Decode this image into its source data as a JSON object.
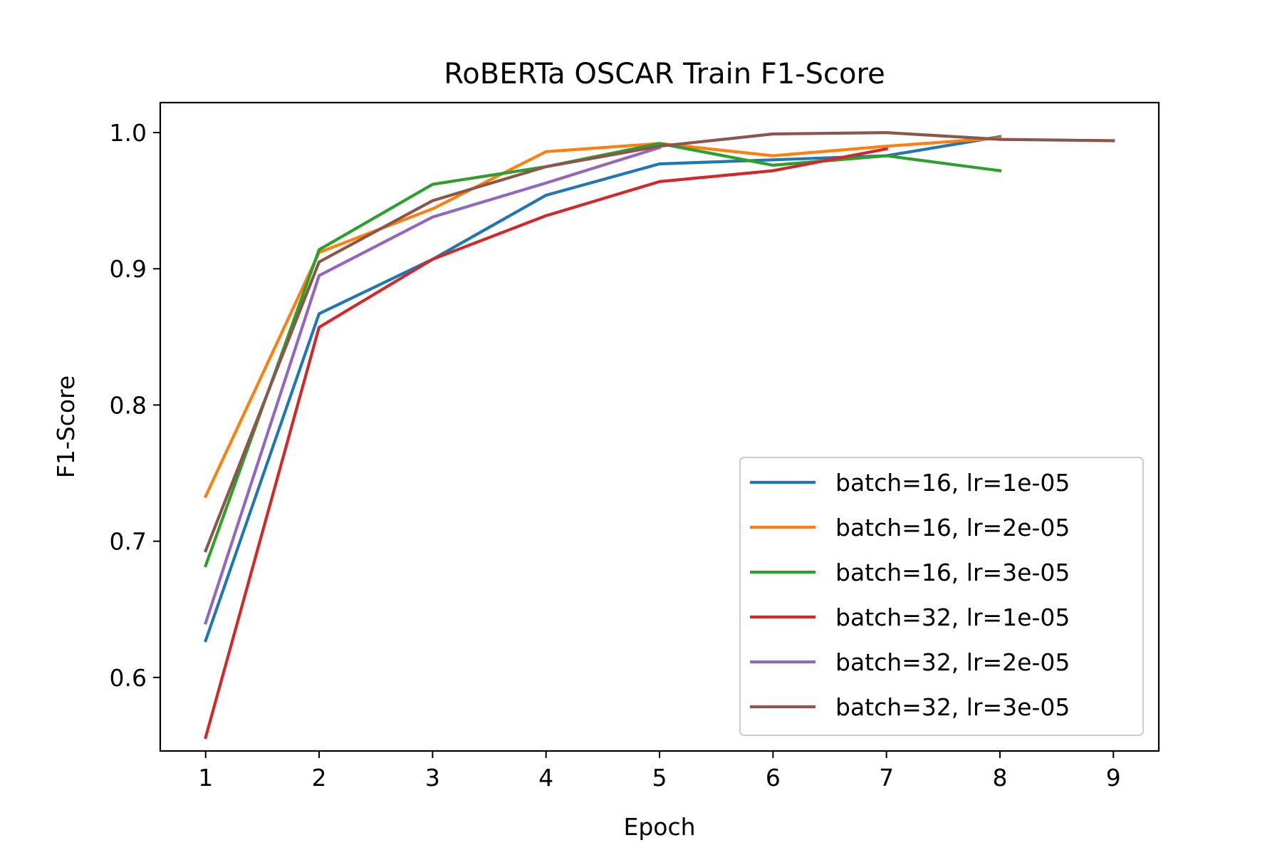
{
  "chart_data": {
    "type": "line",
    "title": "RoBERTa OSCAR Train F1-Score",
    "xlabel": "Epoch",
    "ylabel": "F1-Score",
    "xlim": [
      0.6,
      9.4
    ],
    "ylim": [
      0.546,
      1.022
    ],
    "xticks": [
      "1",
      "2",
      "3",
      "4",
      "5",
      "6",
      "7",
      "8",
      "9"
    ],
    "yticks": [
      "0.6",
      "0.7",
      "0.8",
      "0.9",
      "1.0"
    ],
    "grid": false,
    "legend_position": "bottom-right",
    "series": [
      {
        "name": "batch=16, lr=1e-05",
        "color": "#1f77b4",
        "x": [
          1,
          2,
          3,
          4,
          5,
          6,
          7,
          8
        ],
        "y": [
          0.627,
          0.867,
          0.907,
          0.954,
          0.977,
          0.98,
          0.983,
          0.997
        ]
      },
      {
        "name": "batch=16, lr=2e-05",
        "color": "#ff7f0e",
        "x": [
          1,
          2,
          3,
          4,
          5,
          6,
          7,
          8
        ],
        "y": [
          0.733,
          0.912,
          0.944,
          0.986,
          0.992,
          0.983,
          0.99,
          0.996
        ]
      },
      {
        "name": "batch=16, lr=3e-05",
        "color": "#2ca02c",
        "x": [
          1,
          2,
          3,
          4,
          5,
          6,
          7,
          8
        ],
        "y": [
          0.682,
          0.914,
          0.962,
          0.975,
          0.992,
          0.976,
          0.983,
          0.972
        ]
      },
      {
        "name": "batch=32, lr=1e-05",
        "color": "#d62728",
        "x": [
          1,
          2,
          3,
          4,
          5,
          6,
          7
        ],
        "y": [
          0.556,
          0.857,
          0.907,
          0.939,
          0.964,
          0.972,
          0.988
        ]
      },
      {
        "name": "batch=32, lr=2e-05",
        "color": "#9467bd",
        "x": [
          1,
          2,
          3,
          4,
          5
        ],
        "y": [
          0.64,
          0.895,
          0.938,
          0.963,
          0.989
        ]
      },
      {
        "name": "batch=32, lr=3e-05",
        "color": "#8c564b",
        "x": [
          1,
          2,
          3,
          4,
          5,
          6,
          7,
          8,
          9
        ],
        "y": [
          0.693,
          0.905,
          0.95,
          0.975,
          0.99,
          0.999,
          1.0,
          0.995,
          0.994
        ]
      }
    ]
  }
}
